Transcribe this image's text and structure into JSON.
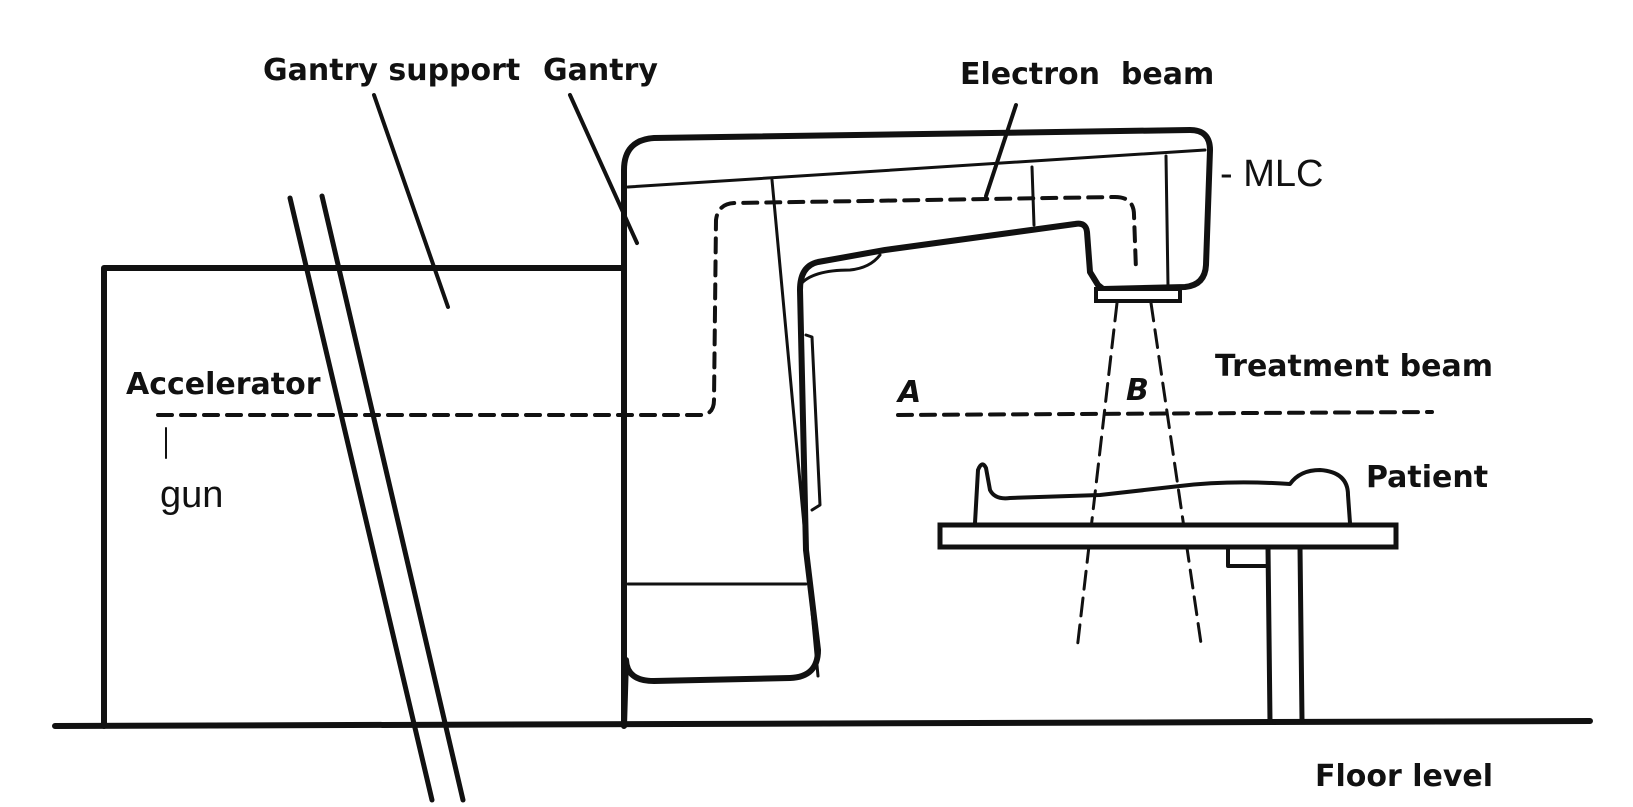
{
  "diagram": {
    "colors": {
      "ink": "#111111",
      "background": "#ffffff"
    },
    "labels": {
      "gantry_support": "Gantry support",
      "gantry": "Gantry",
      "electron_beam": "Electron  beam",
      "mlc": "- MLC",
      "accelerator": "Accelerator",
      "gun": "gun",
      "treatment_beam": "Treatment beam",
      "point_a": "A",
      "point_b": "B",
      "patient": "Patient",
      "floor_level": "Floor level"
    }
  }
}
